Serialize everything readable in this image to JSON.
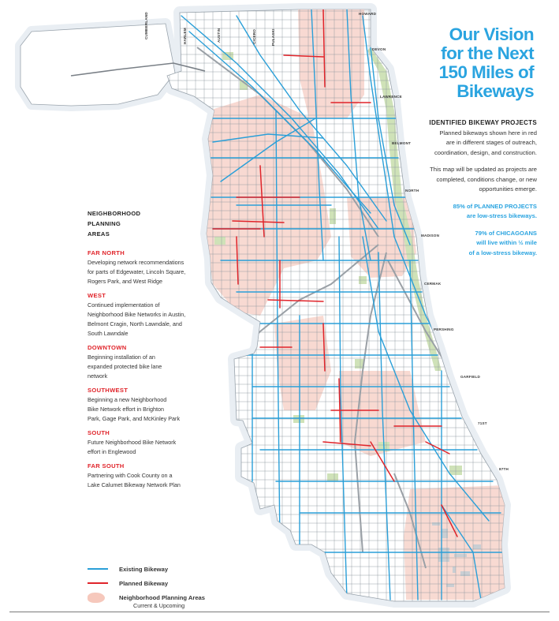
{
  "title": {
    "line1": "Our Vision",
    "line2": "for the Next",
    "line3": "150 Miles of",
    "line4": "Bikeways"
  },
  "projects": {
    "heading": "IDENTIFIED BIKEWAY PROJECTS",
    "p1a": "Planned bikeways shown here in red",
    "p1b": "are in different stages of outreach,",
    "p1c": "coordination, design, and construction.",
    "p2a": "This map will be updated as projects are",
    "p2b": "completed, conditions change, or new",
    "p2c": "opportunities emerge.",
    "stat1a": "85% of PLANNED PROJECTS",
    "stat1b": "are low-stress bikeways.",
    "stat2a": "79% of CHICAGOANS",
    "stat2b": "will live within ½ mile",
    "stat2c": "of a low-stress bikeway."
  },
  "areas": {
    "heading1": "NEIGHBORHOOD",
    "heading2": "PLANNING",
    "heading3": "AREAS",
    "list": [
      {
        "name": "FAR NORTH",
        "lines": [
          "Developing network recommendations",
          "for parts of Edgewater, Lincoln Square,",
          "Rogers Park, and West Ridge"
        ]
      },
      {
        "name": "WEST",
        "lines": [
          "Continued implementation of",
          "Neighborhood Bike Networks in Austin,",
          "Belmont Cragin, North Lawndale, and",
          "South Lawndale"
        ]
      },
      {
        "name": "DOWNTOWN",
        "lines": [
          "Beginning installation of an",
          "expanded protected bike lane",
          "network"
        ]
      },
      {
        "name": "SOUTHWEST",
        "lines": [
          "Beginning a new Neighborhood",
          "Bike Network effort in Brighton",
          "Park, Gage Park, and McKinley Park"
        ]
      },
      {
        "name": "SOUTH",
        "lines": [
          "Future Neighborhood Bike Network",
          "effort in Englewood"
        ]
      },
      {
        "name": "FAR SOUTH",
        "lines": [
          "Partnering with Cook County on a",
          "Lake Calumet Bikeway Network Plan"
        ]
      }
    ]
  },
  "legend": {
    "existing": "Existing Bikeway",
    "planned": "Planned Bikeway",
    "areas": "Neighborhood Planning Areas",
    "areas_sub": "Current & Upcoming"
  },
  "streets": {
    "howard": "HOWARD",
    "devon": "DEVON",
    "lawrence": "LAWRENCE",
    "belmont": "BELMONT",
    "north": "NORTH",
    "madison": "MADISON",
    "cermak": "CERMAK",
    "pershing": "PERSHING",
    "garfield": "GARFIELD",
    "st71": "71ST",
    "st87": "87TH",
    "cumberland": "CUMBERLAND",
    "harlem": "HARLEM",
    "austin": "AUSTIN",
    "cicero": "CICERO",
    "pulaski": "PULASKI"
  },
  "colors": {
    "existing": "#2a9fd8",
    "planned": "#e0242a",
    "planning_area": "#f6c8bc",
    "heading_blue": "#2aa4e0",
    "heading_red": "#e0242a"
  }
}
